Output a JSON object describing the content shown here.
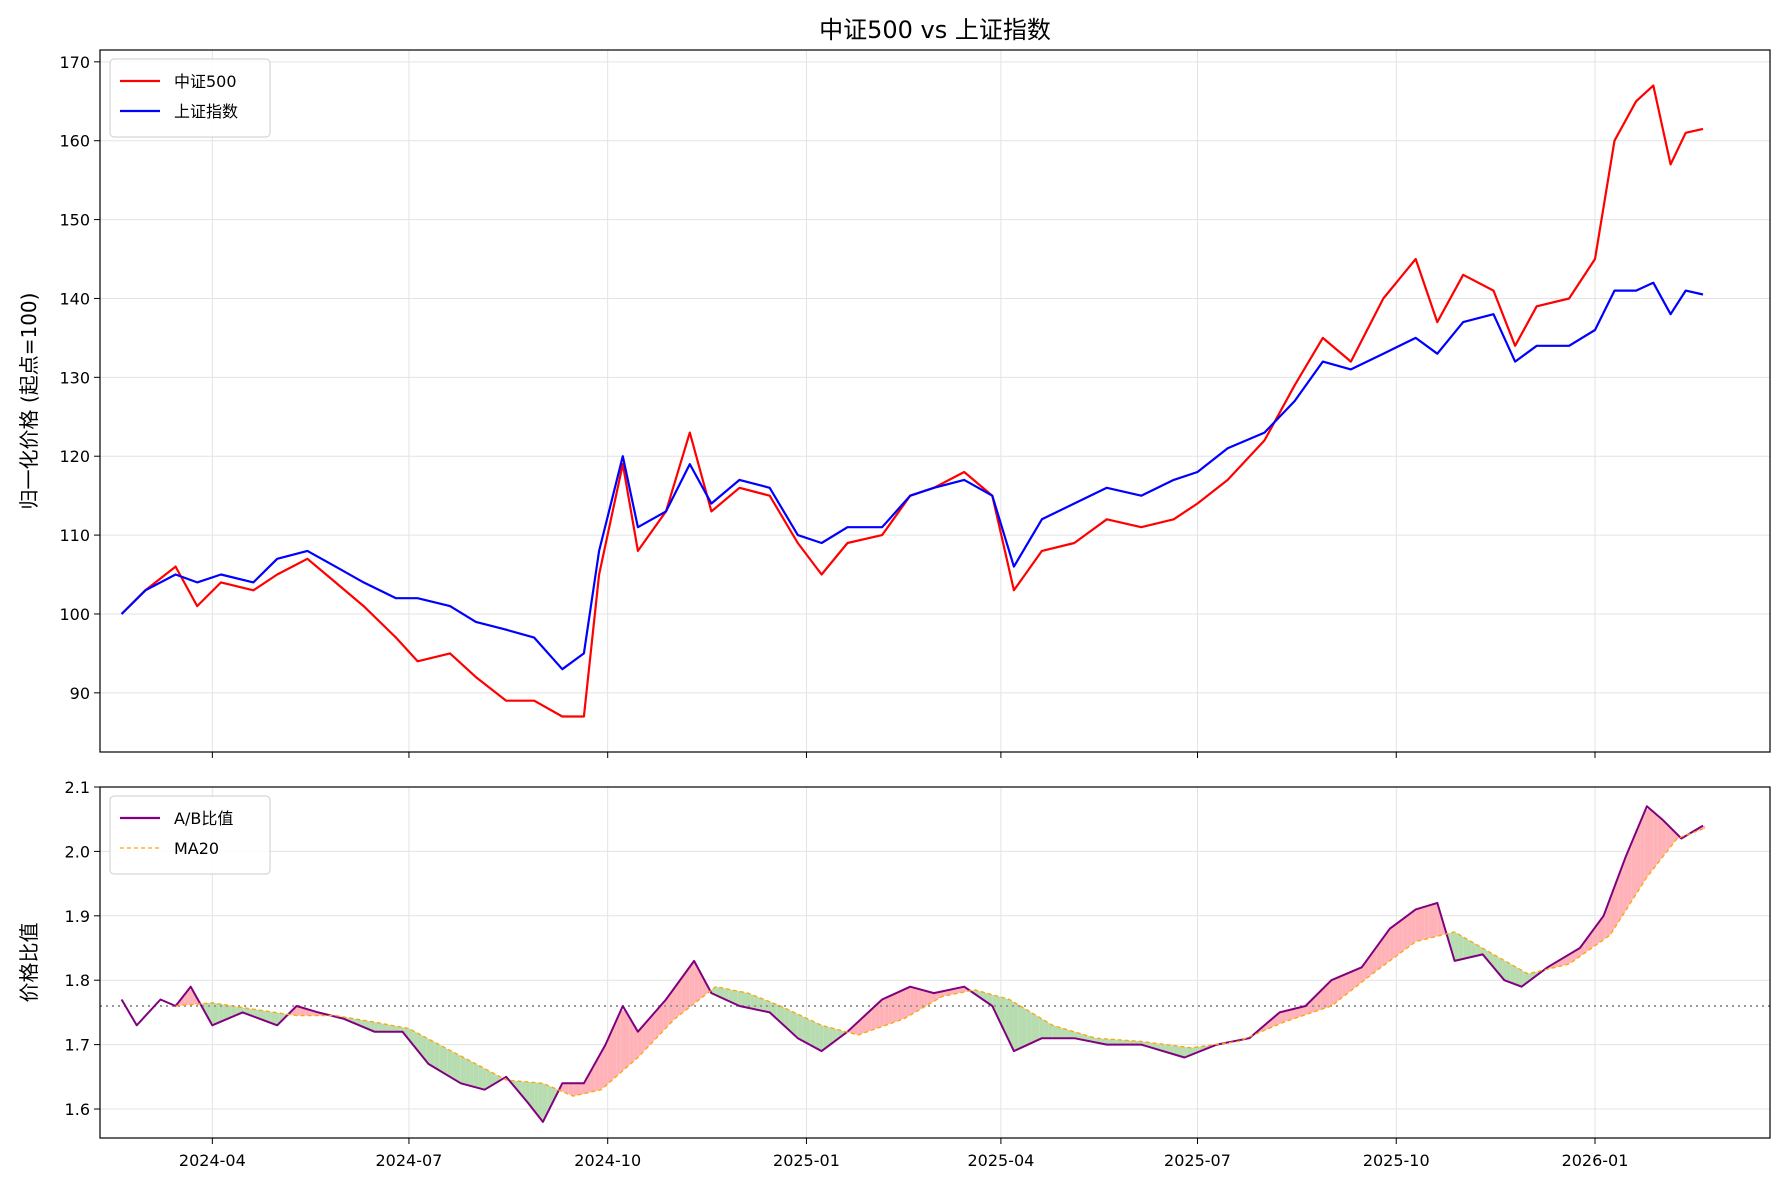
{
  "chart_data": [
    {
      "type": "line",
      "title": "中证500 vs 上证指数",
      "xlabel": "",
      "ylabel": "归一化价格 (起点=100)",
      "ylim": [
        82.5,
        171.5
      ],
      "xlim": [
        "2024-02-09",
        "2026-03-23"
      ],
      "grid": true,
      "legend_position": "top-left",
      "x_ticks": [
        "2024-04",
        "2024-07",
        "2024-10",
        "2025-01",
        "2025-04",
        "2025-07",
        "2025-10",
        "2026-01"
      ],
      "y_ticks": [
        90,
        100,
        110,
        120,
        130,
        140,
        150,
        160,
        170
      ],
      "series": [
        {
          "name": "中证500",
          "color": "#ff0000",
          "points": [
            [
              "2024-02-19",
              100
            ],
            [
              "2024-03-01",
              103
            ],
            [
              "2024-03-15",
              106
            ],
            [
              "2024-03-25",
              101
            ],
            [
              "2024-04-05",
              104
            ],
            [
              "2024-04-20",
              103
            ],
            [
              "2024-05-01",
              105
            ],
            [
              "2024-05-15",
              107
            ],
            [
              "2024-05-28",
              104
            ],
            [
              "2024-06-10",
              101
            ],
            [
              "2024-06-25",
              97
            ],
            [
              "2024-07-05",
              94
            ],
            [
              "2024-07-20",
              95
            ],
            [
              "2024-08-01",
              92
            ],
            [
              "2024-08-15",
              89
            ],
            [
              "2024-08-28",
              89
            ],
            [
              "2024-09-10",
              87
            ],
            [
              "2024-09-20",
              87
            ],
            [
              "2024-09-27",
              105
            ],
            [
              "2024-10-08",
              119
            ],
            [
              "2024-10-15",
              108
            ],
            [
              "2024-10-28",
              113
            ],
            [
              "2024-11-08",
              123
            ],
            [
              "2024-11-18",
              113
            ],
            [
              "2024-12-01",
              116
            ],
            [
              "2024-12-15",
              115
            ],
            [
              "2024-12-28",
              109
            ],
            [
              "2025-01-08",
              105
            ],
            [
              "2025-01-20",
              109
            ],
            [
              "2025-02-05",
              110
            ],
            [
              "2025-02-18",
              115
            ],
            [
              "2025-03-01",
              116
            ],
            [
              "2025-03-15",
              118
            ],
            [
              "2025-03-28",
              115
            ],
            [
              "2025-04-07",
              103
            ],
            [
              "2025-04-20",
              108
            ],
            [
              "2025-05-05",
              109
            ],
            [
              "2025-05-20",
              112
            ],
            [
              "2025-06-05",
              111
            ],
            [
              "2025-06-20",
              112
            ],
            [
              "2025-07-01",
              114
            ],
            [
              "2025-07-15",
              117
            ],
            [
              "2025-08-01",
              122
            ],
            [
              "2025-08-15",
              129
            ],
            [
              "2025-08-28",
              135
            ],
            [
              "2025-09-10",
              132
            ],
            [
              "2025-09-25",
              140
            ],
            [
              "2025-10-10",
              145
            ],
            [
              "2025-10-20",
              137
            ],
            [
              "2025-11-01",
              143
            ],
            [
              "2025-11-15",
              141
            ],
            [
              "2025-11-25",
              134
            ],
            [
              "2025-12-05",
              139
            ],
            [
              "2025-12-20",
              140
            ],
            [
              "2026-01-01",
              145
            ],
            [
              "2026-01-10",
              160
            ],
            [
              "2026-01-20",
              165
            ],
            [
              "2026-01-28",
              167
            ],
            [
              "2026-02-05",
              157
            ],
            [
              "2026-02-12",
              161
            ],
            [
              "2026-02-20",
              161.5
            ]
          ]
        },
        {
          "name": "上证指数",
          "color": "#0000ff",
          "points": [
            [
              "2024-02-19",
              100
            ],
            [
              "2024-03-01",
              103
            ],
            [
              "2024-03-15",
              105
            ],
            [
              "2024-03-25",
              104
            ],
            [
              "2024-04-05",
              105
            ],
            [
              "2024-04-20",
              104
            ],
            [
              "2024-05-01",
              107
            ],
            [
              "2024-05-15",
              108
            ],
            [
              "2024-05-28",
              106
            ],
            [
              "2024-06-10",
              104
            ],
            [
              "2024-06-25",
              102
            ],
            [
              "2024-07-05",
              102
            ],
            [
              "2024-07-20",
              101
            ],
            [
              "2024-08-01",
              99
            ],
            [
              "2024-08-15",
              98
            ],
            [
              "2024-08-28",
              97
            ],
            [
              "2024-09-10",
              93
            ],
            [
              "2024-09-20",
              95
            ],
            [
              "2024-09-27",
              108
            ],
            [
              "2024-10-08",
              120
            ],
            [
              "2024-10-15",
              111
            ],
            [
              "2024-10-28",
              113
            ],
            [
              "2024-11-08",
              119
            ],
            [
              "2024-11-18",
              114
            ],
            [
              "2024-12-01",
              117
            ],
            [
              "2024-12-15",
              116
            ],
            [
              "2024-12-28",
              110
            ],
            [
              "2025-01-08",
              109
            ],
            [
              "2025-01-20",
              111
            ],
            [
              "2025-02-05",
              111
            ],
            [
              "2025-02-18",
              115
            ],
            [
              "2025-03-01",
              116
            ],
            [
              "2025-03-15",
              117
            ],
            [
              "2025-03-28",
              115
            ],
            [
              "2025-04-07",
              106
            ],
            [
              "2025-04-20",
              112
            ],
            [
              "2025-05-05",
              114
            ],
            [
              "2025-05-20",
              116
            ],
            [
              "2025-06-05",
              115
            ],
            [
              "2025-06-20",
              117
            ],
            [
              "2025-07-01",
              118
            ],
            [
              "2025-07-15",
              121
            ],
            [
              "2025-08-01",
              123
            ],
            [
              "2025-08-15",
              127
            ],
            [
              "2025-08-28",
              132
            ],
            [
              "2025-09-10",
              131
            ],
            [
              "2025-09-25",
              133
            ],
            [
              "2025-10-10",
              135
            ],
            [
              "2025-10-20",
              133
            ],
            [
              "2025-11-01",
              137
            ],
            [
              "2025-11-15",
              138
            ],
            [
              "2025-11-25",
              132
            ],
            [
              "2025-12-05",
              134
            ],
            [
              "2025-12-20",
              134
            ],
            [
              "2026-01-01",
              136
            ],
            [
              "2026-01-10",
              141
            ],
            [
              "2026-01-20",
              141
            ],
            [
              "2026-01-28",
              142
            ],
            [
              "2026-02-05",
              138
            ],
            [
              "2026-02-12",
              141
            ],
            [
              "2026-02-20",
              140.5
            ]
          ]
        }
      ]
    },
    {
      "type": "line",
      "title": "",
      "xlabel": "",
      "ylabel": "价格比值",
      "ylim": [
        1.555,
        2.1
      ],
      "xlim": [
        "2024-02-09",
        "2026-03-23"
      ],
      "grid": true,
      "legend_position": "top-left",
      "x_ticks": [
        "2024-04",
        "2024-07",
        "2024-10",
        "2025-01",
        "2025-04",
        "2025-07",
        "2025-10",
        "2026-01"
      ],
      "y_ticks": [
        1.6,
        1.7,
        1.8,
        1.9,
        2.0,
        2.1
      ],
      "reference_line": 1.76,
      "series": [
        {
          "name": "A/B比值",
          "color": "#800080",
          "points": [
            [
              "2024-02-19",
              1.77
            ],
            [
              "2024-02-26",
              1.73
            ],
            [
              "2024-03-08",
              1.77
            ],
            [
              "2024-03-15",
              1.76
            ],
            [
              "2024-03-22",
              1.79
            ],
            [
              "2024-04-01",
              1.73
            ],
            [
              "2024-04-15",
              1.75
            ],
            [
              "2024-05-01",
              1.73
            ],
            [
              "2024-05-10",
              1.76
            ],
            [
              "2024-05-20",
              1.75
            ],
            [
              "2024-06-01",
              1.74
            ],
            [
              "2024-06-15",
              1.72
            ],
            [
              "2024-06-28",
              1.72
            ],
            [
              "2024-07-10",
              1.67
            ],
            [
              "2024-07-25",
              1.64
            ],
            [
              "2024-08-05",
              1.63
            ],
            [
              "2024-08-15",
              1.65
            ],
            [
              "2024-08-25",
              1.61
            ],
            [
              "2024-09-01",
              1.58
            ],
            [
              "2024-09-10",
              1.64
            ],
            [
              "2024-09-20",
              1.64
            ],
            [
              "2024-09-30",
              1.7
            ],
            [
              "2024-10-08",
              1.76
            ],
            [
              "2024-10-15",
              1.72
            ],
            [
              "2024-10-28",
              1.77
            ],
            [
              "2024-11-10",
              1.83
            ],
            [
              "2024-11-18",
              1.78
            ],
            [
              "2024-12-01",
              1.76
            ],
            [
              "2024-12-15",
              1.75
            ],
            [
              "2024-12-28",
              1.71
            ],
            [
              "2025-01-08",
              1.69
            ],
            [
              "2025-01-20",
              1.72
            ],
            [
              "2025-02-05",
              1.77
            ],
            [
              "2025-02-18",
              1.79
            ],
            [
              "2025-03-01",
              1.78
            ],
            [
              "2025-03-15",
              1.79
            ],
            [
              "2025-03-28",
              1.76
            ],
            [
              "2025-04-07",
              1.69
            ],
            [
              "2025-04-20",
              1.71
            ],
            [
              "2025-05-05",
              1.71
            ],
            [
              "2025-05-20",
              1.7
            ],
            [
              "2025-06-05",
              1.7
            ],
            [
              "2025-06-25",
              1.68
            ],
            [
              "2025-07-10",
              1.7
            ],
            [
              "2025-07-25",
              1.71
            ],
            [
              "2025-08-08",
              1.75
            ],
            [
              "2025-08-20",
              1.76
            ],
            [
              "2025-09-01",
              1.8
            ],
            [
              "2025-09-15",
              1.82
            ],
            [
              "2025-09-28",
              1.88
            ],
            [
              "2025-10-10",
              1.91
            ],
            [
              "2025-10-20",
              1.92
            ],
            [
              "2025-10-28",
              1.83
            ],
            [
              "2025-11-10",
              1.84
            ],
            [
              "2025-11-20",
              1.8
            ],
            [
              "2025-11-28",
              1.79
            ],
            [
              "2025-12-10",
              1.82
            ],
            [
              "2025-12-25",
              1.85
            ],
            [
              "2026-01-05",
              1.9
            ],
            [
              "2026-01-15",
              1.99
            ],
            [
              "2026-01-25",
              2.07
            ],
            [
              "2026-02-01",
              2.05
            ],
            [
              "2026-02-10",
              2.02
            ],
            [
              "2026-02-20",
              2.04
            ]
          ]
        },
        {
          "name": "MA20",
          "color": "#ffa500",
          "dashed": true,
          "points": [
            [
              "2024-03-15",
              1.76
            ],
            [
              "2024-04-01",
              1.765
            ],
            [
              "2024-04-20",
              1.755
            ],
            [
              "2024-05-10",
              1.745
            ],
            [
              "2024-05-28",
              1.745
            ],
            [
              "2024-06-15",
              1.735
            ],
            [
              "2024-07-01",
              1.725
            ],
            [
              "2024-07-15",
              1.7
            ],
            [
              "2024-08-01",
              1.67
            ],
            [
              "2024-08-15",
              1.645
            ],
            [
              "2024-09-01",
              1.64
            ],
            [
              "2024-09-15",
              1.62
            ],
            [
              "2024-09-28",
              1.63
            ],
            [
              "2024-10-15",
              1.68
            ],
            [
              "2024-11-01",
              1.74
            ],
            [
              "2024-11-20",
              1.79
            ],
            [
              "2024-12-05",
              1.78
            ],
            [
              "2024-12-20",
              1.76
            ],
            [
              "2025-01-08",
              1.73
            ],
            [
              "2025-01-25",
              1.715
            ],
            [
              "2025-02-15",
              1.74
            ],
            [
              "2025-03-05",
              1.775
            ],
            [
              "2025-03-20",
              1.785
            ],
            [
              "2025-04-05",
              1.77
            ],
            [
              "2025-04-25",
              1.73
            ],
            [
              "2025-05-15",
              1.71
            ],
            [
              "2025-06-05",
              1.705
            ],
            [
              "2025-06-28",
              1.695
            ],
            [
              "2025-07-20",
              1.705
            ],
            [
              "2025-08-10",
              1.735
            ],
            [
              "2025-09-01",
              1.76
            ],
            [
              "2025-09-20",
              1.81
            ],
            [
              "2025-10-10",
              1.86
            ],
            [
              "2025-10-28",
              1.875
            ],
            [
              "2025-11-15",
              1.84
            ],
            [
              "2025-12-01",
              1.81
            ],
            [
              "2025-12-20",
              1.825
            ],
            [
              "2026-01-08",
              1.87
            ],
            [
              "2026-01-25",
              1.96
            ],
            [
              "2026-02-08",
              2.02
            ],
            [
              "2026-02-20",
              2.035
            ]
          ]
        }
      ]
    }
  ]
}
